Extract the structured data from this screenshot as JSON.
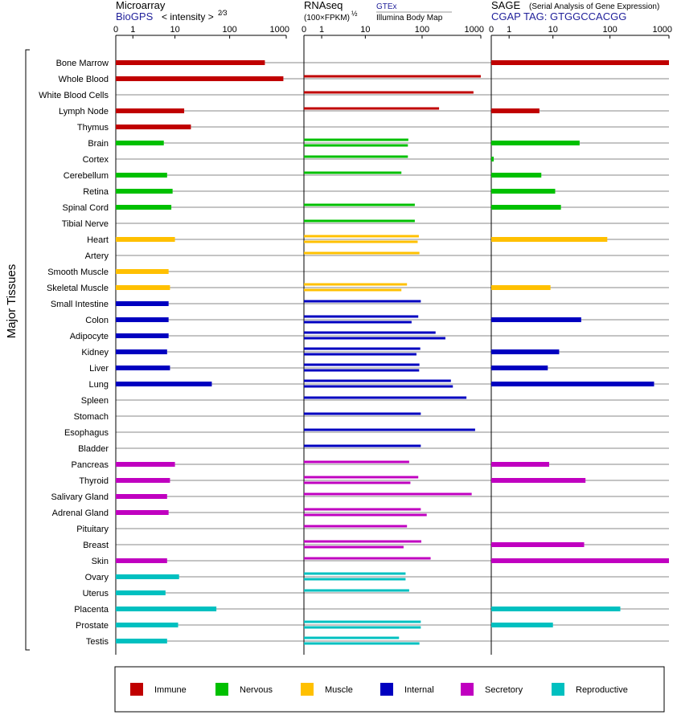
{
  "chart_data": {
    "type": "bar",
    "orientation": "horizontal",
    "x_scale": "log1p",
    "group_label": "Major Tissues",
    "categories": [
      "Bone Marrow",
      "Whole Blood",
      "White Blood Cells",
      "Lymph Node",
      "Thymus",
      "Brain",
      "Cortex",
      "Cerebellum",
      "Retina",
      "Spinal Cord",
      "Tibial Nerve",
      "Heart",
      "Artery",
      "Smooth Muscle",
      "Skeletal Muscle",
      "Small Intestine",
      "Colon",
      "Adipocyte",
      "Kidney",
      "Liver",
      "Lung",
      "Spleen",
      "Stomach",
      "Esophagus",
      "Bladder",
      "Pancreas",
      "Thyroid",
      "Salivary Gland",
      "Adrenal Gland",
      "Pituitary",
      "Breast",
      "Skin",
      "Ovary",
      "Uterus",
      "Placenta",
      "Prostate",
      "Testis"
    ],
    "category_group": [
      "Immune",
      "Immune",
      "Immune",
      "Immune",
      "Immune",
      "Nervous",
      "Nervous",
      "Nervous",
      "Nervous",
      "Nervous",
      "Nervous",
      "Muscle",
      "Muscle",
      "Muscle",
      "Muscle",
      "Internal",
      "Internal",
      "Internal",
      "Internal",
      "Internal",
      "Internal",
      "Internal",
      "Internal",
      "Internal",
      "Internal",
      "Secretory",
      "Secretory",
      "Secretory",
      "Secretory",
      "Secretory",
      "Secretory",
      "Secretory",
      "Reproductive",
      "Reproductive",
      "Reproductive",
      "Reproductive",
      "Reproductive"
    ],
    "legend": {
      "position": "bottom",
      "items": [
        {
          "label": "Immune",
          "color": "#c00000"
        },
        {
          "label": "Nervous",
          "color": "#00c000"
        },
        {
          "label": "Muscle",
          "color": "#ffc000"
        },
        {
          "label": "Internal",
          "color": "#0000c0"
        },
        {
          "label": "Secretory",
          "color": "#c000c0"
        },
        {
          "label": "Reproductive",
          "color": "#00c0c0"
        }
      ]
    },
    "panels": [
      {
        "id": "microarray",
        "title": "Microarray",
        "subtitle": "BioGPS",
        "unit_label": "< intensity >",
        "unit_exponent": "2⁄3",
        "ticks": [
          "0",
          "1",
          "10",
          "100",
          "1000"
        ],
        "tick_values": [
          0,
          1,
          10,
          100,
          1000
        ],
        "series": [
          {
            "name": "Microarray",
            "values": [
              [
                420
              ],
              [
                890
              ],
              [
                null
              ],
              [
                15
              ],
              [
                20
              ],
              [
                6
              ],
              [
                null
              ],
              [
                7
              ],
              [
                9
              ],
              [
                8.5
              ],
              [
                null
              ],
              [
                10
              ],
              [
                null
              ],
              [
                7.5
              ],
              [
                8
              ],
              [
                7.5
              ],
              [
                7.5
              ],
              [
                7.5
              ],
              [
                7
              ],
              [
                8
              ],
              [
                48
              ],
              [
                null
              ],
              [
                null
              ],
              [
                null
              ],
              [
                null
              ],
              [
                10
              ],
              [
                8
              ],
              [
                7
              ],
              [
                7.5
              ],
              [
                null
              ],
              [
                null
              ],
              [
                7
              ],
              [
                12
              ],
              [
                6.5
              ],
              [
                58
              ],
              [
                11.5
              ],
              [
                7
              ]
            ]
          }
        ]
      },
      {
        "id": "rnaseq",
        "title": "RNAseq",
        "unit_label": "(100×FPKM)",
        "unit_exponent": "½",
        "legend_top": "GTEx",
        "legend_bottom": "Illumina Body Map",
        "ticks": [
          "0",
          "1",
          "10",
          "100",
          "1000"
        ],
        "tick_values": [
          0,
          1,
          10,
          100,
          1000
        ],
        "series": [
          {
            "name": "GTEx",
            "values": [
              [
                null
              ],
              [
                1000
              ],
              [
                750
              ],
              [
                195
              ],
              [
                null
              ],
              [
                58,
                57
              ],
              [
                57
              ],
              [
                44
              ],
              [
                null
              ],
              [
                75
              ],
              [
                75
              ],
              [
                88,
                84
              ],
              [
                90
              ],
              [
                null
              ],
              [
                55,
                44
              ],
              [
                95
              ],
              [
                86,
                66
              ],
              [
                170,
                250
              ],
              [
                93,
                80
              ],
              [
                90,
                89
              ],
              [
                310,
                335
              ],
              [
                570
              ],
              [
                95
              ],
              [
                800
              ],
              [
                95
              ],
              [
                60
              ],
              [
                86,
                63
              ],
              [
                700
              ],
              [
                95,
                120
              ],
              [
                55
              ],
              [
                97,
                48
              ],
              [
                140
              ],
              [
                52,
                52
              ],
              [
                60
              ],
              [
                null
              ],
              [
                95,
                95
              ],
              [
                40,
                90
              ]
            ]
          }
        ]
      },
      {
        "id": "sage",
        "title": "SAGE",
        "subtitle": "CGAP TAG: GTGGCCACGG",
        "note": "(Serial Analysis of Gene Expression)",
        "ticks": [
          "0",
          "1",
          "10",
          "100",
          "1000"
        ],
        "tick_values": [
          0,
          1,
          10,
          100,
          1000
        ],
        "series": [
          {
            "name": "SAGE",
            "values": [
              [
                1000
              ],
              [
                null
              ],
              [
                null
              ],
              [
                5.5
              ],
              [
                null
              ],
              [
                30
              ],
              [
                0.1
              ],
              [
                6
              ],
              [
                11
              ],
              [
                14
              ],
              [
                null
              ],
              [
                90
              ],
              [
                null
              ],
              [
                null
              ],
              [
                9
              ],
              [
                null
              ],
              [
                32
              ],
              [
                null
              ],
              [
                13
              ],
              [
                8
              ],
              [
                560
              ],
              [
                null
              ],
              [
                null
              ],
              [
                null
              ],
              [
                null
              ],
              [
                8.5
              ],
              [
                38
              ],
              [
                null
              ],
              [
                null
              ],
              [
                null
              ],
              [
                36
              ],
              [
                1000
              ],
              [
                null
              ],
              [
                null
              ],
              [
                150
              ],
              [
                10
              ],
              [
                null
              ]
            ]
          }
        ]
      }
    ]
  }
}
